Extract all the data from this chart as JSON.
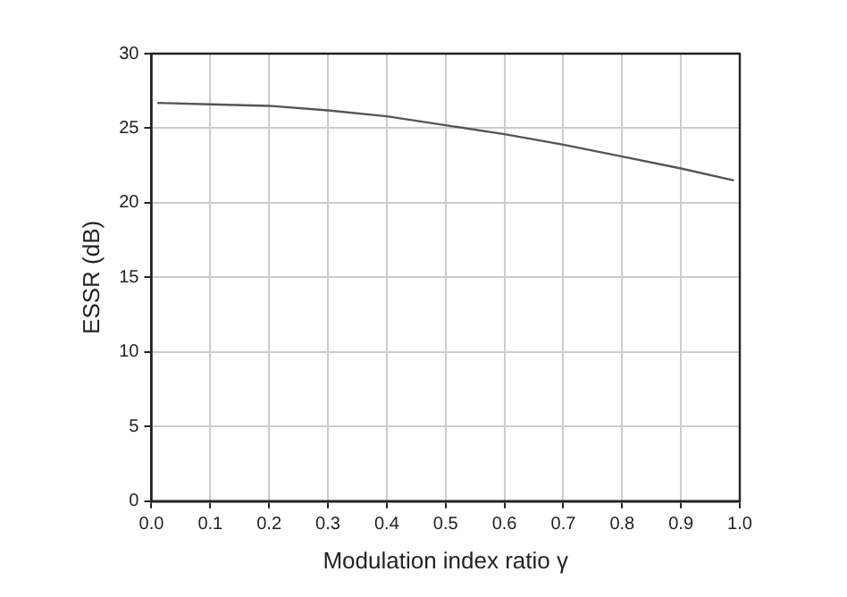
{
  "chart_data": {
    "type": "line",
    "xlabel": "Modulation index ratio γ",
    "ylabel": "ESSR (dB)",
    "x": [
      0.01,
      0.1,
      0.2,
      0.3,
      0.4,
      0.5,
      0.6,
      0.7,
      0.8,
      0.9,
      0.99
    ],
    "series": [
      {
        "color": "#555555",
        "values": [
          26.7,
          26.6,
          26.5,
          26.2,
          25.8,
          25.2,
          24.6,
          23.9,
          23.1,
          22.3,
          21.5
        ]
      }
    ],
    "xlim": [
      0,
      1
    ],
    "xticks": [
      {
        "value": 0,
        "label": "0.0"
      },
      0.1,
      0.2,
      0.3,
      0.4,
      0.5,
      0.6,
      0.7,
      0.8,
      0.9,
      {
        "value": 1,
        "label": "1.0"
      }
    ],
    "ylim": [
      0,
      30
    ],
    "yticks": [
      0,
      5,
      10,
      15,
      20,
      25,
      30
    ],
    "grid": true,
    "legend": false,
    "marker": "none",
    "line_style": "solid"
  }
}
